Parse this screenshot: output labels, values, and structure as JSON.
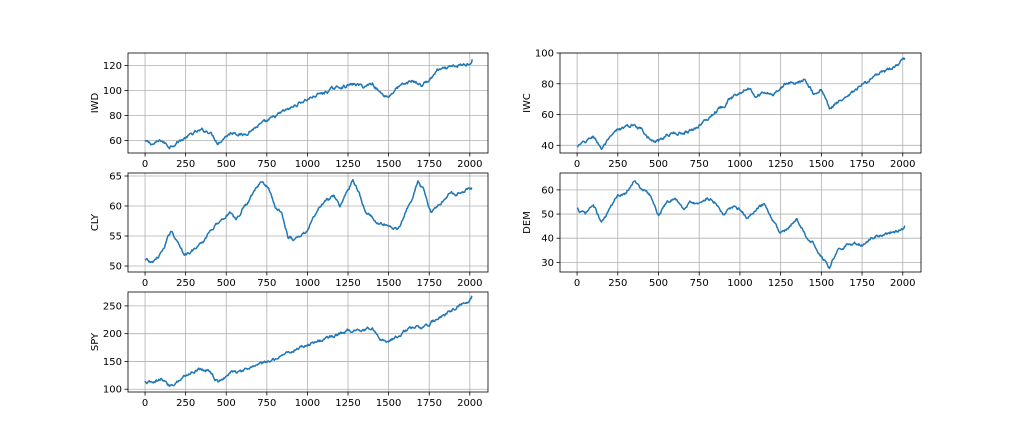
{
  "chart_data": [
    {
      "type": "line",
      "ylabel": "IWD",
      "xlim": [
        -105,
        2112
      ],
      "ylim": [
        50,
        130
      ],
      "xticks": [
        0,
        250,
        500,
        750,
        1000,
        1250,
        1500,
        1750,
        2000
      ],
      "yticks": [
        60,
        80,
        100,
        120
      ],
      "grid": true,
      "color": "#1f77b4",
      "x": [
        0,
        50,
        100,
        150,
        200,
        250,
        300,
        350,
        400,
        450,
        500,
        550,
        600,
        650,
        700,
        750,
        800,
        850,
        900,
        950,
        1000,
        1050,
        1100,
        1150,
        1200,
        1250,
        1300,
        1350,
        1400,
        1450,
        1500,
        1550,
        1600,
        1650,
        1700,
        1750,
        1800,
        1850,
        1900,
        1950,
        2000,
        2015
      ],
      "values": [
        59,
        57,
        60,
        55,
        59,
        62,
        66,
        68,
        67,
        58,
        64,
        67,
        64,
        68,
        72,
        75,
        79,
        83,
        86,
        90,
        93,
        96,
        98,
        101,
        103,
        104,
        105,
        103,
        106,
        98,
        95,
        102,
        105,
        108,
        104,
        108,
        116,
        117,
        119,
        120,
        122,
        125
      ]
    },
    {
      "type": "line",
      "ylabel": "IWC",
      "xlim": [
        -105,
        2112
      ],
      "ylim": [
        35,
        100
      ],
      "xticks": [
        0,
        250,
        500,
        750,
        1000,
        1250,
        1500,
        1750,
        2000
      ],
      "yticks": [
        40,
        60,
        80,
        100
      ],
      "grid": true,
      "color": "#1f77b4",
      "x": [
        0,
        50,
        100,
        150,
        200,
        250,
        300,
        350,
        400,
        450,
        500,
        550,
        600,
        650,
        700,
        750,
        800,
        850,
        900,
        950,
        1000,
        1050,
        1100,
        1150,
        1200,
        1250,
        1300,
        1350,
        1400,
        1450,
        1500,
        1550,
        1600,
        1650,
        1700,
        1750,
        1800,
        1850,
        1900,
        1950,
        2000,
        2015
      ],
      "values": [
        39,
        42,
        46,
        38,
        44,
        50,
        52,
        53,
        51,
        43,
        42,
        47,
        48,
        48,
        50,
        53,
        57,
        62,
        66,
        71,
        75,
        78,
        72,
        75,
        72,
        78,
        81,
        80,
        84,
        74,
        76,
        64,
        68,
        70,
        75,
        79,
        83,
        86,
        88,
        91,
        95,
        96
      ]
    },
    {
      "type": "line",
      "ylabel": "CLY",
      "xlim": [
        -105,
        2112
      ],
      "ylim": [
        49,
        65.5
      ],
      "xticks": [
        0,
        250,
        500,
        750,
        1000,
        1250,
        1500,
        1750,
        2000
      ],
      "yticks": [
        50,
        55,
        60,
        65
      ],
      "grid": true,
      "color": "#1f77b4",
      "x": [
        0,
        40,
        80,
        120,
        160,
        200,
        240,
        280,
        320,
        360,
        400,
        440,
        480,
        520,
        560,
        600,
        640,
        680,
        720,
        760,
        800,
        840,
        880,
        920,
        960,
        1000,
        1040,
        1080,
        1120,
        1160,
        1200,
        1240,
        1280,
        1320,
        1360,
        1400,
        1440,
        1480,
        1520,
        1560,
        1600,
        1640,
        1680,
        1720,
        1760,
        1800,
        1840,
        1880,
        1920,
        1960,
        2000,
        2015
      ],
      "values": [
        51,
        50.5,
        51.5,
        53,
        56,
        54,
        52,
        52.5,
        53,
        54,
        56,
        57,
        58,
        59,
        57.5,
        59.5,
        61,
        63,
        64,
        63,
        60,
        59,
        55,
        54.5,
        55,
        56,
        58,
        60,
        61,
        61.5,
        60,
        62,
        64.5,
        62,
        59,
        58,
        57,
        57,
        56.5,
        56,
        59,
        61,
        64,
        62.5,
        59,
        60,
        61,
        62,
        62,
        62.5,
        63,
        63
      ]
    },
    {
      "type": "line",
      "ylabel": "DEM",
      "xlim": [
        -105,
        2112
      ],
      "ylim": [
        26,
        67
      ],
      "xticks": [
        0,
        250,
        500,
        750,
        1000,
        1250,
        1500,
        1750,
        2000
      ],
      "yticks": [
        30,
        40,
        50,
        60
      ],
      "grid": true,
      "color": "#1f77b4",
      "x": [
        0,
        50,
        100,
        150,
        200,
        250,
        300,
        350,
        400,
        450,
        500,
        550,
        600,
        650,
        700,
        750,
        800,
        850,
        900,
        950,
        1000,
        1050,
        1100,
        1150,
        1200,
        1250,
        1300,
        1350,
        1400,
        1450,
        1500,
        1550,
        1600,
        1650,
        1700,
        1750,
        1800,
        1850,
        1900,
        1950,
        2000,
        2015
      ],
      "values": [
        52,
        50,
        54,
        46,
        52,
        58,
        59,
        64,
        60,
        58,
        49,
        55,
        57,
        52,
        55,
        54,
        57,
        55,
        50,
        53,
        52,
        48,
        52,
        54,
        47,
        42,
        44,
        48,
        41,
        38,
        33,
        28,
        35,
        37,
        38,
        37,
        40,
        41,
        42,
        43,
        44,
        45
      ]
    },
    {
      "type": "line",
      "ylabel": "SPY",
      "xlim": [
        -105,
        2112
      ],
      "ylim": [
        95,
        275
      ],
      "xticks": [
        0,
        250,
        500,
        750,
        1000,
        1250,
        1500,
        1750,
        2000
      ],
      "yticks": [
        100,
        150,
        200,
        250
      ],
      "grid": true,
      "color": "#1f77b4",
      "x": [
        0,
        50,
        100,
        150,
        200,
        250,
        300,
        350,
        400,
        450,
        500,
        550,
        600,
        650,
        700,
        750,
        800,
        850,
        900,
        950,
        1000,
        1050,
        1100,
        1150,
        1200,
        1250,
        1300,
        1350,
        1400,
        1450,
        1500,
        1550,
        1600,
        1650,
        1700,
        1750,
        1800,
        1850,
        1900,
        1950,
        2000,
        2015
      ],
      "values": [
        113,
        110,
        118,
        106,
        115,
        125,
        133,
        137,
        133,
        112,
        125,
        133,
        130,
        140,
        145,
        148,
        155,
        163,
        168,
        175,
        180,
        186,
        190,
        195,
        200,
        205,
        207,
        208,
        212,
        190,
        186,
        195,
        205,
        211,
        210,
        215,
        228,
        235,
        245,
        253,
        260,
        268
      ]
    }
  ]
}
